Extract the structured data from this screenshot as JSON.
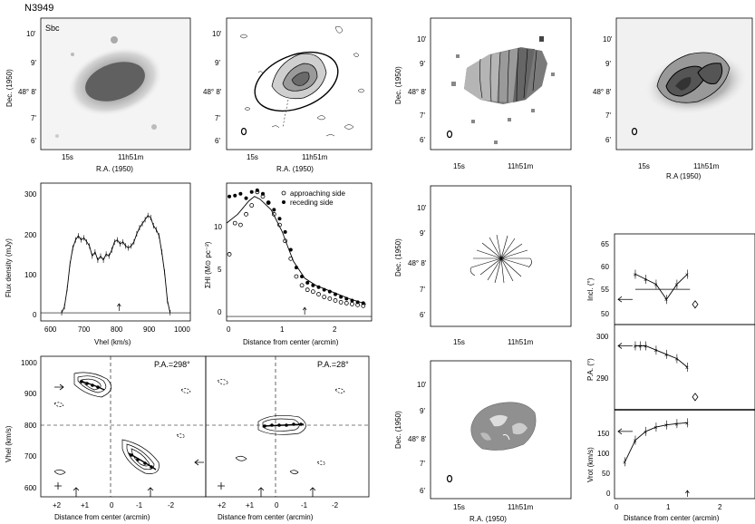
{
  "galaxy": "N3949",
  "morph_type": "Sbc",
  "labels": {
    "dec_1950": "Dec. (1950)",
    "ra_1950": "R.A. (1950)",
    "ra_alt": "R.A (1950)",
    "ra_left_tick": "15s",
    "ra_right_tick": "11h51m",
    "dec_ticks": [
      "10'",
      "9'",
      "48° 8'",
      "7'",
      "6'"
    ],
    "flux_density": "Flux density (mJy)",
    "vhel_axis": "Vhel (km/s)",
    "sigma_hi": "ΣHI (M⊙ pc⁻²)",
    "distance_from_center": "Distance from center (arcmin)",
    "legend_approaching": "approaching side",
    "legend_receding": "receding side",
    "pa_left": "P.A.=298°",
    "pa_right": "P.A.=28°",
    "incl": "Incl. (°)",
    "pa": "P.A. (°)",
    "vrot": "Vrot (km/s)"
  },
  "ticks": {
    "flux_x": [
      "600",
      "700",
      "800",
      "900",
      "1000"
    ],
    "flux_y": [
      "0",
      "100",
      "200",
      "300"
    ],
    "sigma_x": [
      "0",
      "1",
      "2"
    ],
    "sigma_y": [
      "0",
      "5",
      "10"
    ],
    "pv_y": [
      "1000",
      "900",
      "800",
      "700",
      "600"
    ],
    "pv_x": [
      "+2",
      "+1",
      "0",
      "-1",
      "-2"
    ],
    "incl_y": [
      "65",
      "60",
      "55",
      "50"
    ],
    "pa_y": [
      "300",
      "290"
    ],
    "vrot_y": [
      "150",
      "100",
      "50",
      "0"
    ],
    "dist_x": [
      "0",
      "1",
      "2"
    ]
  },
  "chart_data": [
    {
      "type": "line",
      "name": "global HI profile",
      "xlim": [
        580,
        1010
      ],
      "ylim": [
        -20,
        320
      ],
      "x": [
        640,
        648,
        656,
        664,
        672,
        680,
        688,
        696,
        704,
        712,
        720,
        728,
        736,
        744,
        752,
        760,
        768,
        776,
        784,
        792,
        800,
        808,
        816,
        824,
        832,
        840,
        848,
        856,
        864,
        872,
        880,
        888,
        896,
        904,
        912,
        920,
        928,
        936,
        944,
        952
      ],
      "y": [
        0,
        15,
        60,
        120,
        160,
        180,
        190,
        180,
        185,
        175,
        165,
        140,
        150,
        130,
        140,
        130,
        145,
        140,
        155,
        175,
        180,
        170,
        175,
        165,
        160,
        165,
        175,
        195,
        210,
        220,
        230,
        240,
        235,
        215,
        205,
        190,
        150,
        100,
        30,
        0
      ],
      "systemic_marker_x": 805
    },
    {
      "type": "scatter",
      "name": "HI surface density",
      "xlim": [
        0,
        2.6
      ],
      "ylim": [
        -0.5,
        15
      ],
      "series": [
        {
          "name": "receding side",
          "x": [
            0.05,
            0.15,
            0.25,
            0.35,
            0.45,
            0.55,
            0.65,
            0.75,
            0.85,
            0.95,
            1.05,
            1.15,
            1.25,
            1.35,
            1.45,
            1.55,
            1.65,
            1.75,
            1.85,
            1.95,
            2.05,
            2.15,
            2.25,
            2.35,
            2.45
          ],
          "y": [
            13.5,
            13.6,
            13.8,
            13.3,
            14.0,
            14.2,
            13.8,
            12.8,
            12.0,
            11.0,
            9.5,
            7.5,
            5.5,
            4.5,
            3.8,
            3.5,
            3.3,
            3.0,
            2.8,
            2.5,
            2.2,
            2.0,
            1.8,
            1.6,
            1.5
          ]
        },
        {
          "name": "approaching side",
          "x": [
            0.05,
            0.15,
            0.25,
            0.35,
            0.45,
            0.55,
            0.65,
            0.75,
            0.85,
            0.95,
            1.05,
            1.15,
            1.25,
            1.35,
            1.45,
            1.55,
            1.65,
            1.75,
            1.85,
            1.95,
            2.05,
            2.15,
            2.25,
            2.35,
            2.45
          ],
          "y": [
            7.0,
            10.5,
            10.3,
            11.5,
            12.5,
            14.0,
            13.5,
            12.8,
            11.5,
            10.3,
            8.5,
            6.5,
            4.5,
            3.5,
            3.0,
            2.8,
            2.5,
            2.2,
            2.0,
            1.8,
            1.6,
            1.5,
            1.4,
            1.3,
            1.2
          ]
        },
        {
          "name": "model",
          "x": [
            0,
            0.2,
            0.4,
            0.5,
            0.6,
            0.8,
            1.0,
            1.1,
            1.2,
            1.4,
            1.6,
            1.8,
            2.0,
            2.2,
            2.4,
            2.5
          ],
          "y": [
            10.5,
            11.5,
            13.0,
            13.5,
            13.2,
            12.0,
            9.5,
            7.8,
            6.2,
            4.3,
            3.5,
            3.0,
            2.5,
            2.0,
            1.6,
            1.4
          ]
        }
      ],
      "radius_marker_x": 1.4
    },
    {
      "type": "line",
      "name": "inclination",
      "xlim": [
        0,
        2.7
      ],
      "ylim": [
        48,
        66
      ],
      "x": [
        0.4,
        0.6,
        0.8,
        1.0,
        1.2,
        1.4
      ],
      "y": [
        58,
        57,
        56,
        53,
        56,
        58
      ],
      "fit_y": 55,
      "adopted_y": 53,
      "diamond": [
        1.55,
        52
      ]
    },
    {
      "type": "line",
      "name": "position angle",
      "xlim": [
        0,
        2.7
      ],
      "ylim": [
        283,
        303
      ],
      "x": [
        0.4,
        0.5,
        0.6,
        0.8,
        1.0,
        1.2,
        1.4
      ],
      "y": [
        298,
        298,
        298,
        297,
        296,
        295,
        293
      ],
      "adopted_y": 298,
      "diamond": [
        1.55,
        286
      ]
    },
    {
      "type": "line",
      "name": "rotation curve",
      "xlim": [
        0,
        2.7
      ],
      "ylim": [
        -5,
        200
      ],
      "x": [
        0.2,
        0.4,
        0.6,
        0.8,
        1.0,
        1.2,
        1.4
      ],
      "y": [
        80,
        130,
        150,
        160,
        165,
        168,
        170
      ],
      "adopted_y": 150,
      "radius_marker_x": 1.4
    }
  ]
}
